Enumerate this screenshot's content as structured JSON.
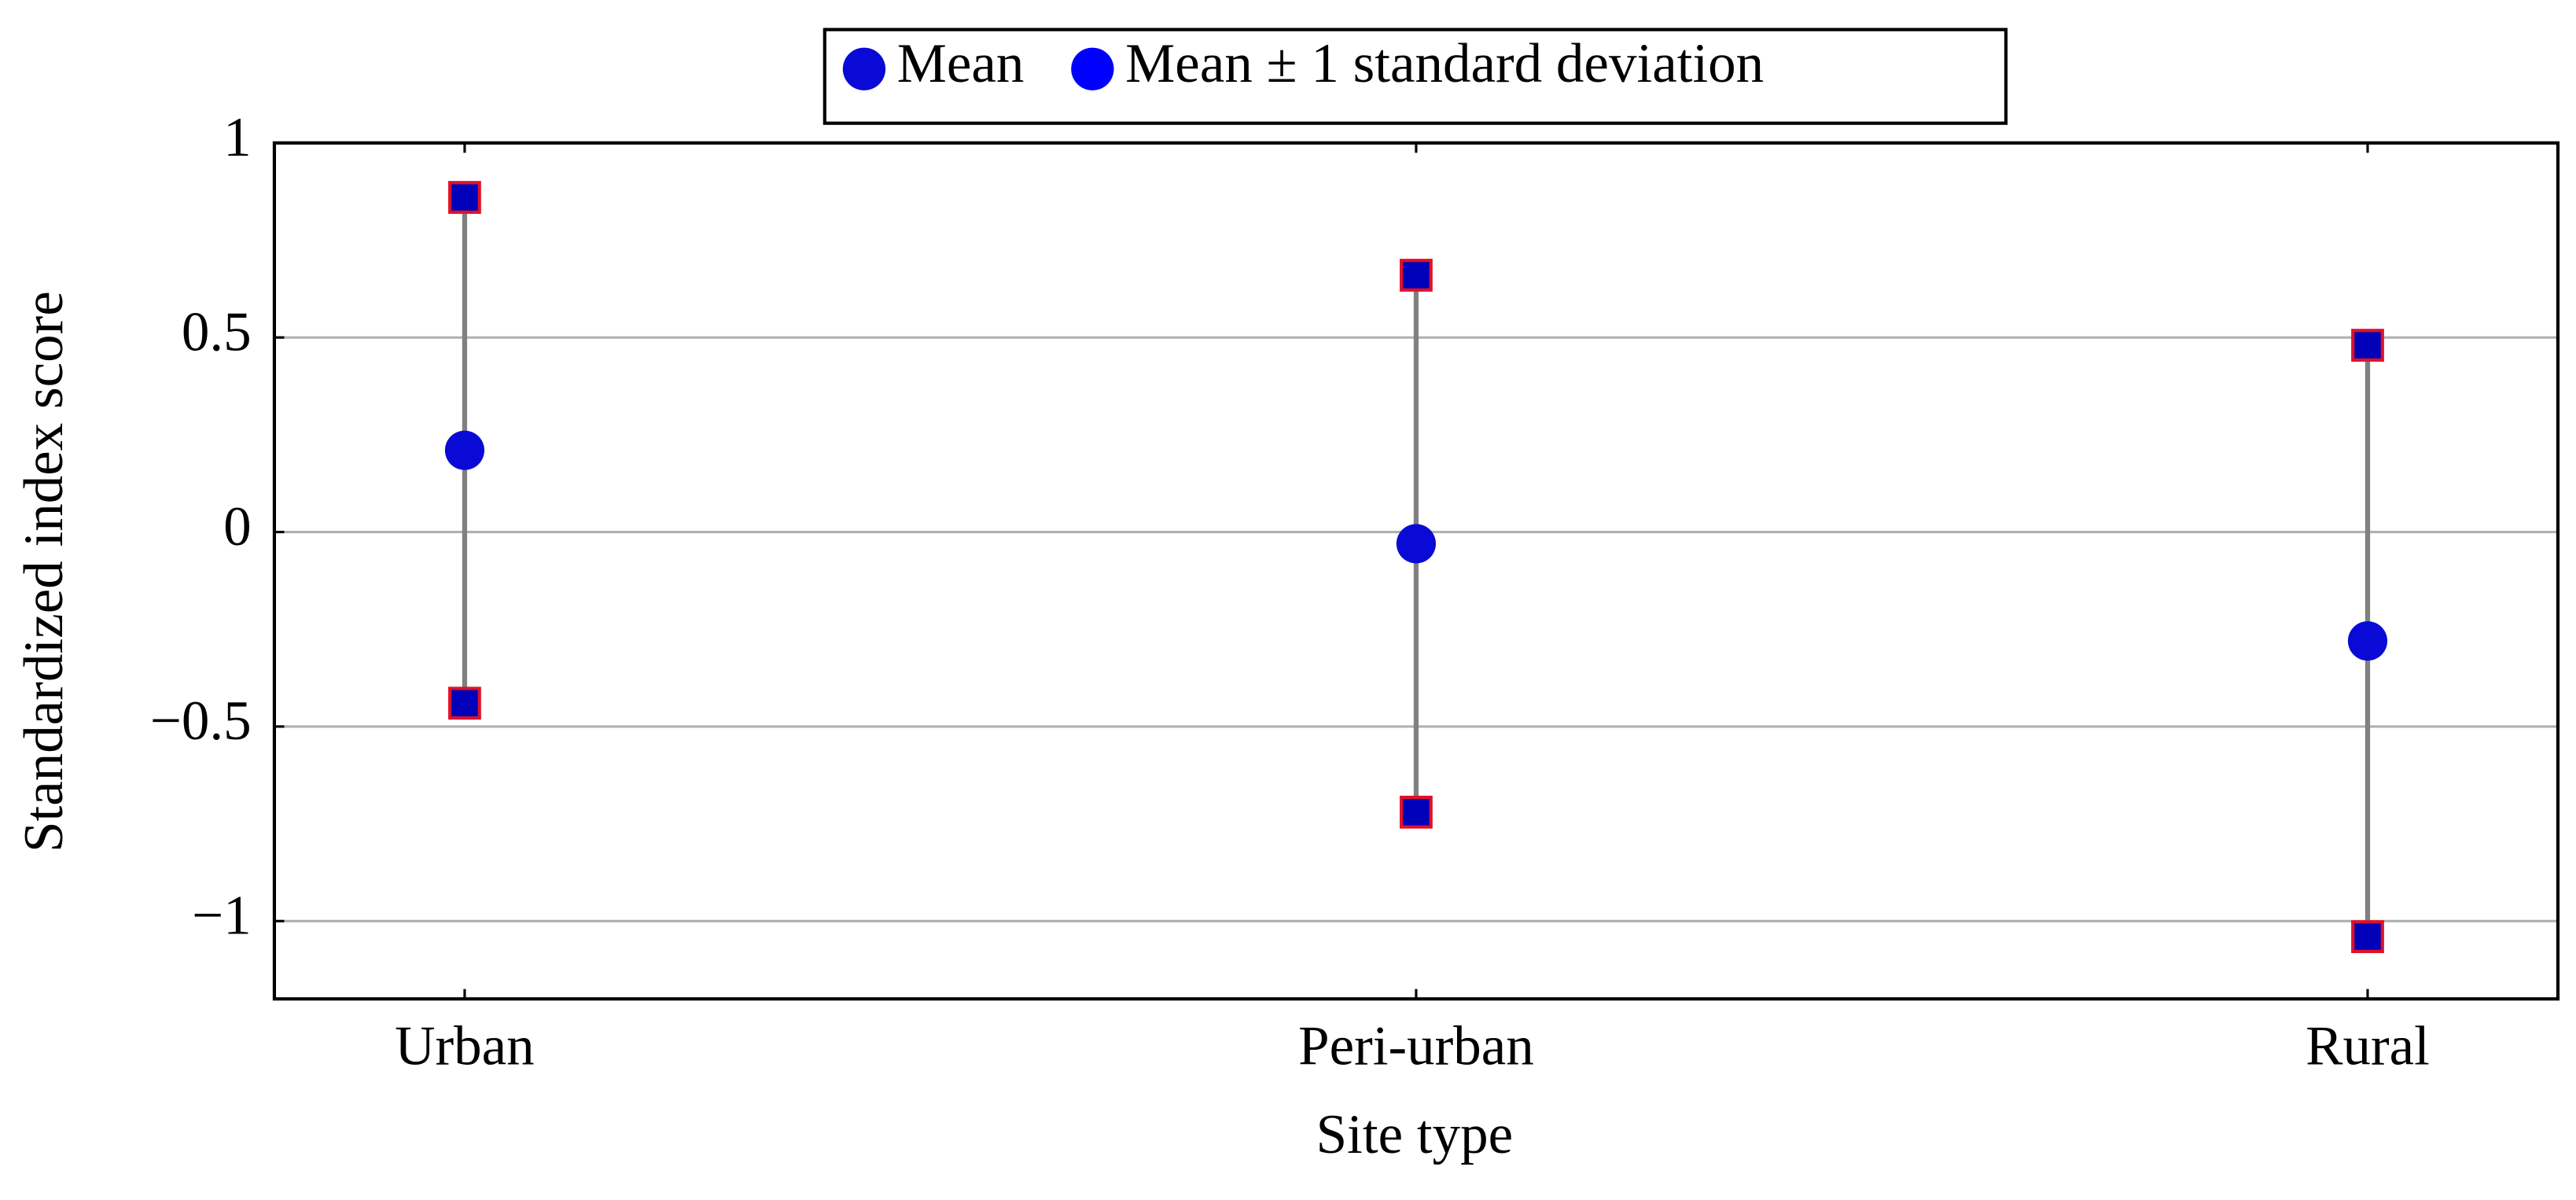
{
  "chart_data": {
    "type": "errorbar",
    "x_label": "Site type",
    "y_label": "Standardized index score",
    "categories": [
      "Urban",
      "Peri-urban",
      "Rural"
    ],
    "series": [
      {
        "name": "Mean",
        "color": "#0a0ad6",
        "values": [
          0.21,
          -0.03,
          -0.28
        ]
      },
      {
        "name": "Mean ± 1 standard deviation",
        "color": "#0000ff",
        "marker_color": "#0000b8",
        "edge_color": "#e0102a",
        "line_color": "#808080",
        "upper": [
          0.86,
          0.66,
          0.48
        ],
        "lower": [
          -0.44,
          -0.72,
          -1.04
        ]
      }
    ],
    "ylim": [
      -1.2,
      1
    ],
    "yticks": [
      {
        "value": -1,
        "label": "−1"
      },
      {
        "value": -0.5,
        "label": "−0.5"
      },
      0,
      0.5,
      1
    ],
    "grid": true,
    "legend": "top"
  }
}
